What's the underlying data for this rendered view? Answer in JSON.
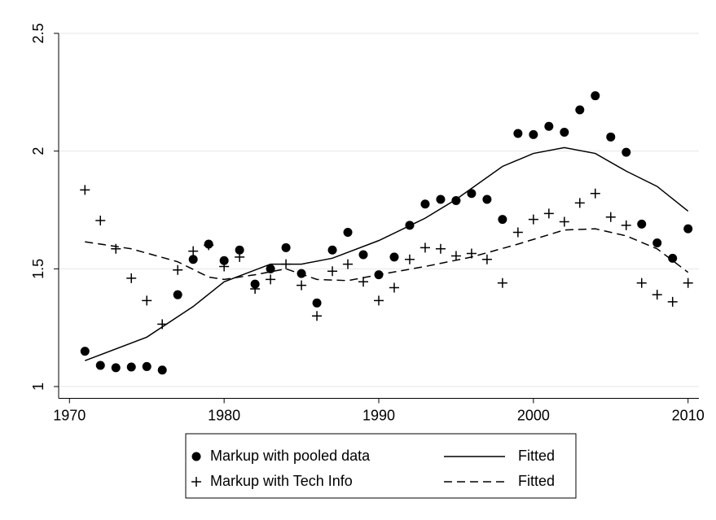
{
  "chart_data": {
    "type": "scatter",
    "xlim": [
      1969.3,
      2010.7
    ],
    "xticks": [
      1970,
      1980,
      1990,
      2000,
      2010
    ],
    "ylim": [
      0.95,
      2.5
    ],
    "yticks": [
      1,
      1.5,
      2,
      2.5
    ],
    "grid": true,
    "legend": "bottom",
    "series": [
      {
        "name": "Markup with pooled data",
        "color": "#000000",
        "marker": "circle",
        "x": [
          1971,
          1972,
          1973,
          1974,
          1975,
          1976,
          1977,
          1978,
          1979,
          1980,
          1981,
          1982,
          1983,
          1984,
          1985,
          1986,
          1987,
          1988,
          1989,
          1990,
          1991,
          1992,
          1993,
          1994,
          1995,
          1996,
          1997,
          1998,
          1999,
          2000,
          2001,
          2002,
          2003,
          2004,
          2005,
          2006,
          2007,
          2008,
          2009,
          2010
        ],
        "values": [
          1.15,
          1.09,
          1.08,
          1.083,
          1.085,
          1.07,
          1.39,
          1.54,
          1.605,
          1.535,
          1.58,
          1.435,
          1.5,
          1.59,
          1.48,
          1.355,
          1.58,
          1.655,
          1.56,
          1.475,
          1.55,
          1.685,
          1.775,
          1.795,
          1.79,
          1.82,
          1.795,
          1.71,
          2.075,
          2.07,
          2.105,
          2.08,
          2.175,
          2.235,
          2.06,
          1.995,
          1.69,
          1.61,
          1.545,
          1.67
        ]
      },
      {
        "name": "Fitted",
        "color": "#000000",
        "line": "solid",
        "x": [
          1971,
          1975,
          1978,
          1980,
          1983,
          1985,
          1987,
          1990,
          1993,
          1995,
          1998,
          2000,
          2002,
          2004,
          2006,
          2008,
          2010
        ],
        "values": [
          1.11,
          1.21,
          1.34,
          1.445,
          1.52,
          1.52,
          1.545,
          1.62,
          1.715,
          1.795,
          1.935,
          1.99,
          2.015,
          1.99,
          1.915,
          1.85,
          1.745
        ]
      },
      {
        "name": "Markup with Tech Info",
        "color": "#000000",
        "marker": "plus",
        "x": [
          1971,
          1972,
          1973,
          1974,
          1975,
          1976,
          1977,
          1978,
          1979,
          1980,
          1981,
          1982,
          1983,
          1984,
          1985,
          1986,
          1987,
          1988,
          1989,
          1990,
          1991,
          1992,
          1993,
          1994,
          1995,
          1996,
          1997,
          1998,
          1999,
          2000,
          2001,
          2002,
          2003,
          2004,
          2005,
          2006,
          2007,
          2008,
          2009,
          2010
        ],
        "values": [
          1.835,
          1.705,
          1.585,
          1.46,
          1.365,
          1.265,
          1.495,
          1.575,
          1.6,
          1.51,
          1.55,
          1.415,
          1.455,
          1.52,
          1.43,
          1.3,
          1.49,
          1.52,
          1.445,
          1.365,
          1.42,
          1.54,
          1.59,
          1.585,
          1.555,
          1.565,
          1.54,
          1.44,
          1.655,
          1.71,
          1.735,
          1.7,
          1.78,
          1.82,
          1.72,
          1.685,
          1.44,
          1.39,
          1.36,
          1.44
        ]
      },
      {
        "name": "Fitted",
        "color": "#000000",
        "line": "dashed",
        "x": [
          1971,
          1974,
          1977,
          1979,
          1980,
          1982,
          1984,
          1986,
          1988,
          1990,
          1993,
          1996,
          1999,
          2002,
          2004,
          2006,
          2008,
          2010
        ],
        "values": [
          1.615,
          1.585,
          1.53,
          1.465,
          1.455,
          1.475,
          1.5,
          1.455,
          1.45,
          1.475,
          1.51,
          1.55,
          1.605,
          1.665,
          1.67,
          1.64,
          1.585,
          1.485
        ]
      }
    ]
  }
}
